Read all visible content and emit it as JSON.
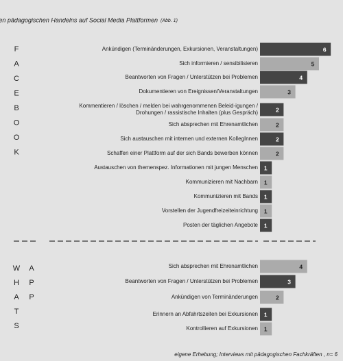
{
  "title": "Facetten pädagogischen Handelns auf Social Media Plattformen",
  "title_note": "(Abb. 1)",
  "source": "eigene Erhebung; Interviews mit pädagogischen Fachkräften , n= 6",
  "chart_data": [
    {
      "type": "bar",
      "label_letters": [
        [
          "F",
          "A",
          "C",
          "E",
          "B",
          "O",
          "O",
          "K"
        ]
      ],
      "categories": [
        "Ankündigen (Terminänderungen, Exkursionen, Veranstaltungen)",
        "Sich informieren / sensibilisieren",
        "Beantworten von Fragen / Unterstützen bei Problemen",
        "Dokumentieren von Ereignissen/Veranstaltungen",
        [
          "Kommentieren / löschen / melden bei wahrgenommenen Beleid-igungen /",
          "Drohungen / rassistische Inhalten (plus Gespräch)"
        ],
        "Sich absprechen mit Ehrenamtlichen",
        "Sich austauschen mit internen und externen KollegInnen",
        "Schaffen einer Plattform auf der sich Bands bewerben können",
        "Austauschen von themenspez. Informationen mit jungen Menschen",
        "Kommunizieren mit Nachbarn",
        "Kommunizieren mit Bands",
        "Vorstellen der Jugendfreizeiteinrichtung",
        "Posten der täglichen Angebote"
      ],
      "values": [
        6,
        5,
        4,
        3,
        2,
        2,
        2,
        2,
        1,
        1,
        1,
        1,
        1
      ],
      "colors": [
        "#454545",
        "#ababab",
        "#454545",
        "#ababab",
        "#454545",
        "#ababab",
        "#454545",
        "#ababab",
        "#454545",
        "#ababab",
        "#454545",
        "#ababab",
        "#454545"
      ]
    },
    {
      "type": "bar",
      "label_letters": [
        [
          "W",
          "H",
          "A",
          "T",
          "S"
        ],
        [
          "A",
          "P",
          "P"
        ]
      ],
      "categories": [
        "Sich absprechen mit Ehrenamtlichen",
        "Beantworten von Fragen / Unterstützen bei Problemen",
        "Ankündigen von Terminänderungen",
        "Erinnern an Abfahrtszeiten bei Exkursionen",
        "Kontrollieren auf Exkursionen"
      ],
      "values": [
        4,
        3,
        2,
        1,
        1
      ],
      "colors": [
        "#ababab",
        "#454545",
        "#ababab",
        "#454545",
        "#ababab"
      ]
    }
  ]
}
